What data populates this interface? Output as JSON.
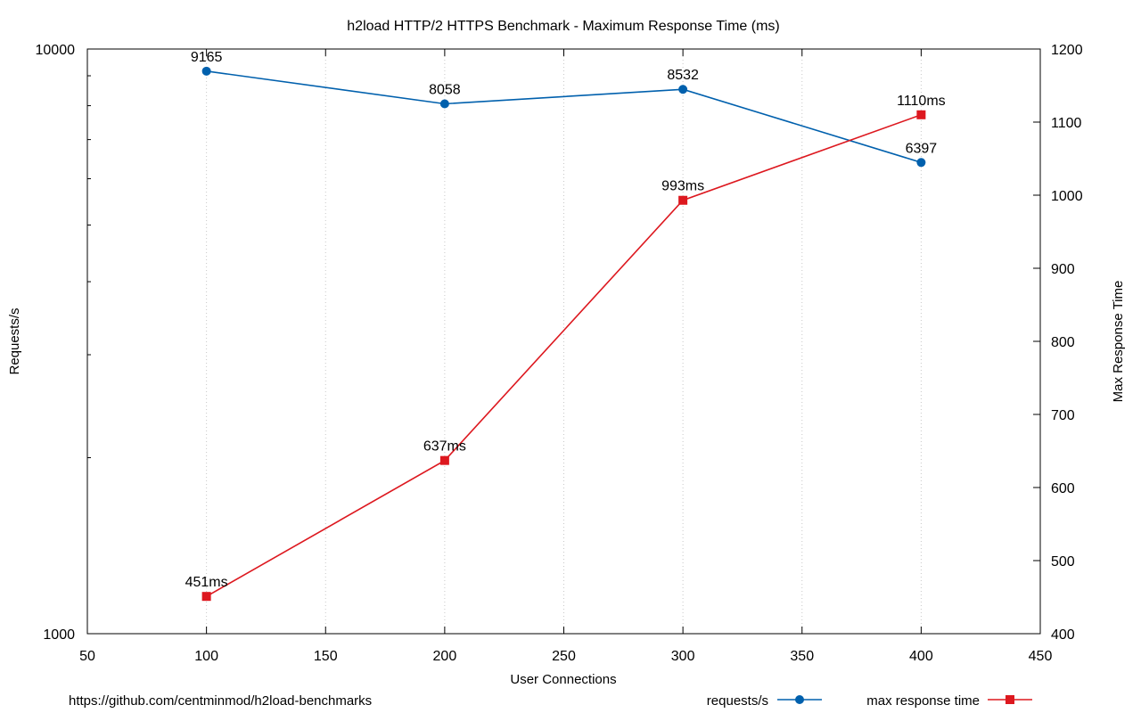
{
  "chart_data": {
    "type": "line",
    "title": "h2load HTTP/2 HTTPS Benchmark - Maximum Response Time (ms)",
    "xlabel": "User Connections",
    "ylabel": "Requests/s",
    "y2label": "Max Response Time",
    "xlim": [
      50,
      450
    ],
    "ylim": [
      1000,
      10000
    ],
    "y_scale": "log",
    "y2lim": [
      400,
      1200
    ],
    "x_ticks": [
      "50",
      "100",
      "150",
      "200",
      "250",
      "300",
      "350",
      "400",
      "450"
    ],
    "y_ticks": [
      "10000",
      "1000"
    ],
    "y2_ticks": [
      "1200",
      "1100",
      "1000",
      "900",
      "800",
      "700",
      "600",
      "500",
      "400"
    ],
    "grid": "vertical dotted",
    "legend_position": "bottom-right",
    "x": [
      100,
      200,
      300,
      400
    ],
    "series": [
      {
        "name": "requests/s",
        "axis": "left",
        "color": "#0060ad",
        "marker": "circle",
        "values": [
          9165,
          8058,
          8532,
          6397
        ],
        "labels": [
          "9165",
          "8058",
          "8532",
          "6397"
        ]
      },
      {
        "name": "max response time",
        "axis": "right",
        "color": "#dd181f",
        "marker": "square",
        "values": [
          451,
          637,
          993,
          1110
        ],
        "labels": [
          "451ms",
          "637ms",
          "993ms",
          "1110ms"
        ]
      }
    ],
    "footnote": "https://github.com/centminmod/h2load-benchmarks"
  }
}
